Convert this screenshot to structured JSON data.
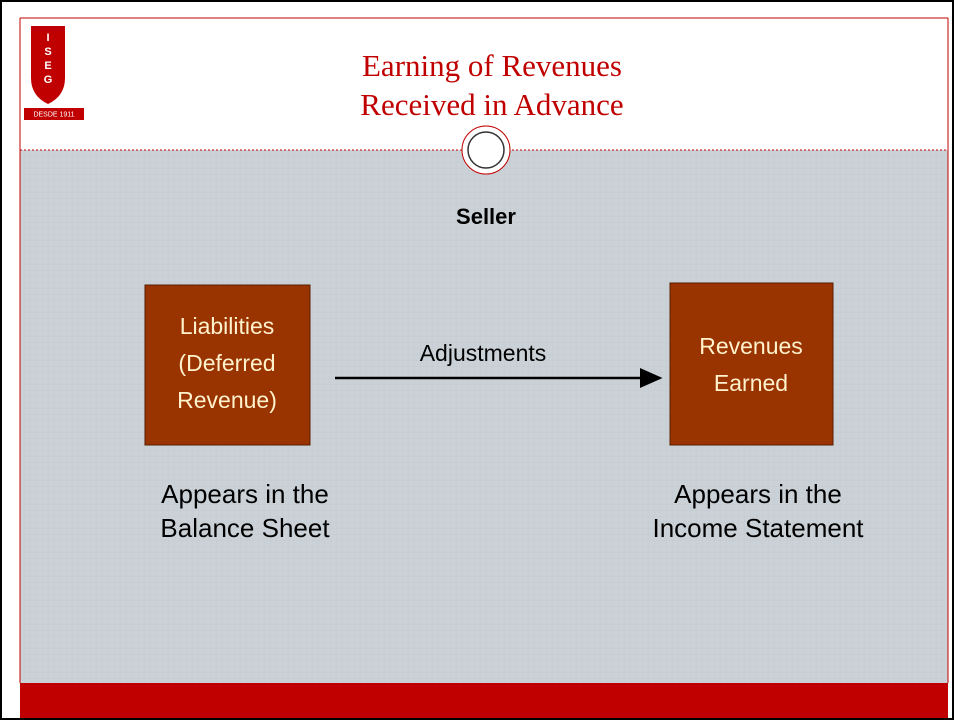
{
  "logo": {
    "letters": [
      "I",
      "S",
      "E",
      "G"
    ],
    "since": "DESDE 1911"
  },
  "header": {
    "title": [
      "Earning of Revenues",
      "Received in Advance"
    ]
  },
  "diagram": {
    "heading": "Seller",
    "nodes": [
      {
        "label": [
          "Liabilities",
          "(Deferred",
          "Revenue)"
        ],
        "caption": [
          "Appears in the",
          "Balance Sheet"
        ]
      },
      {
        "label": [
          "Revenues",
          "Earned"
        ],
        "caption": [
          "Appears in the",
          "Income Statement"
        ]
      }
    ],
    "edge": {
      "label": "Adjustments"
    }
  }
}
